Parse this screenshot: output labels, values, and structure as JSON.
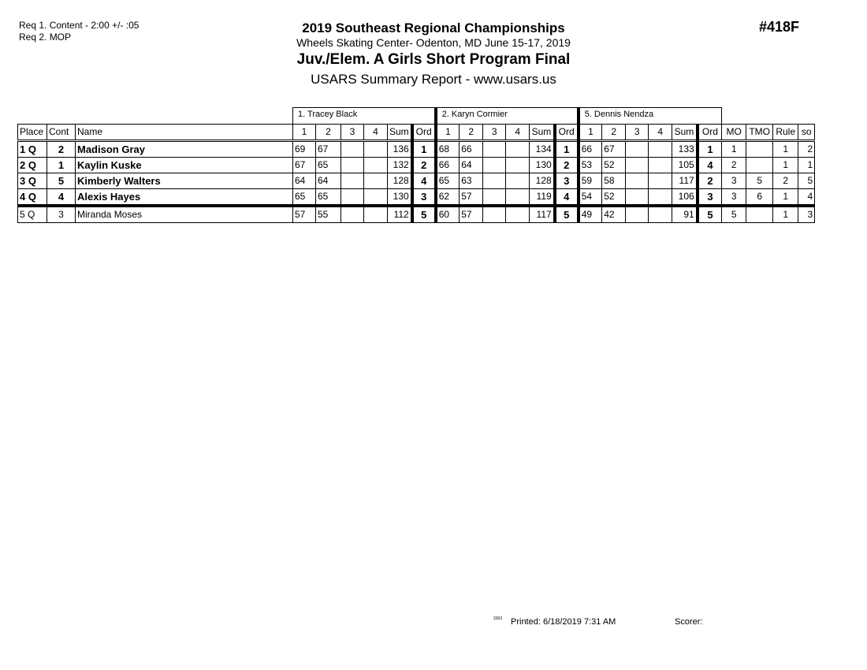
{
  "requirements": [
    "Req  1.  Content - 2:00 +/- :05",
    "Req  2.  MOP"
  ],
  "header": {
    "title": "2019 Southeast Regional Championships",
    "venue": "Wheels Skating Center- Odenton, MD  June 15-17, 2019",
    "event": "Juv./Elem. A Girls Short Program Final",
    "report": "USARS Summary Report - www.usars.us",
    "event_number": "#418F"
  },
  "judges": [
    "1.  Tracey  Black",
    "2.  Karyn Cormier",
    "5.  Dennis Nendza"
  ],
  "columns": {
    "place": "Place",
    "cont": "Cont",
    "name": "Name",
    "judge_cols": [
      "1",
      "2",
      "3",
      "4",
      "Sum",
      "Ord"
    ],
    "mo": "MO",
    "tmo": "TMO",
    "rule": "Rule",
    "so": "so"
  },
  "rows": [
    {
      "place": "1 Q",
      "cont": "2",
      "name": "Madison Gray",
      "bold": true,
      "judges": [
        [
          "69",
          "67",
          "",
          "",
          "136",
          "1"
        ],
        [
          "68",
          "66",
          "",
          "",
          "134",
          "1"
        ],
        [
          "66",
          "67",
          "",
          "",
          "133",
          "1"
        ]
      ],
      "mo": "1",
      "tmo": "",
      "rule": "1",
      "so": "2"
    },
    {
      "place": "2 Q",
      "cont": "1",
      "name": "Kaylin Kuske",
      "bold": true,
      "judges": [
        [
          "67",
          "65",
          "",
          "",
          "132",
          "2"
        ],
        [
          "66",
          "64",
          "",
          "",
          "130",
          "2"
        ],
        [
          "53",
          "52",
          "",
          "",
          "105",
          "4"
        ]
      ],
      "mo": "2",
      "tmo": "",
      "rule": "1",
      "so": "1"
    },
    {
      "place": "3 Q",
      "cont": "5",
      "name": "Kimberly Walters",
      "bold": true,
      "judges": [
        [
          "64",
          "64",
          "",
          "",
          "128",
          "4"
        ],
        [
          "65",
          "63",
          "",
          "",
          "128",
          "3"
        ],
        [
          "59",
          "58",
          "",
          "",
          "117",
          "2"
        ]
      ],
      "mo": "3",
      "tmo": "5",
      "rule": "2",
      "so": "5"
    },
    {
      "place": "4 Q",
      "cont": "4",
      "name": "Alexis Hayes",
      "bold": true,
      "judges": [
        [
          "65",
          "65",
          "",
          "",
          "130",
          "3"
        ],
        [
          "62",
          "57",
          "",
          "",
          "119",
          "4"
        ],
        [
          "54",
          "52",
          "",
          "",
          "106",
          "3"
        ]
      ],
      "mo": "3",
      "tmo": "6",
      "rule": "1",
      "so": "4"
    },
    {
      "place": "5 Q",
      "cont": "3",
      "name": "Miranda Moses",
      "bold": false,
      "judges": [
        [
          "57",
          "55",
          "",
          "",
          "112",
          "5"
        ],
        [
          "60",
          "57",
          "",
          "",
          "117",
          "5"
        ],
        [
          "49",
          "42",
          "",
          "",
          "91",
          "5"
        ]
      ],
      "mo": "5",
      "tmo": "",
      "rule": "1",
      "so": "3"
    }
  ],
  "footer": {
    "code": "3303",
    "printed": "Printed:  6/18/2019  7:31 AM",
    "scorer": "Scorer:"
  }
}
